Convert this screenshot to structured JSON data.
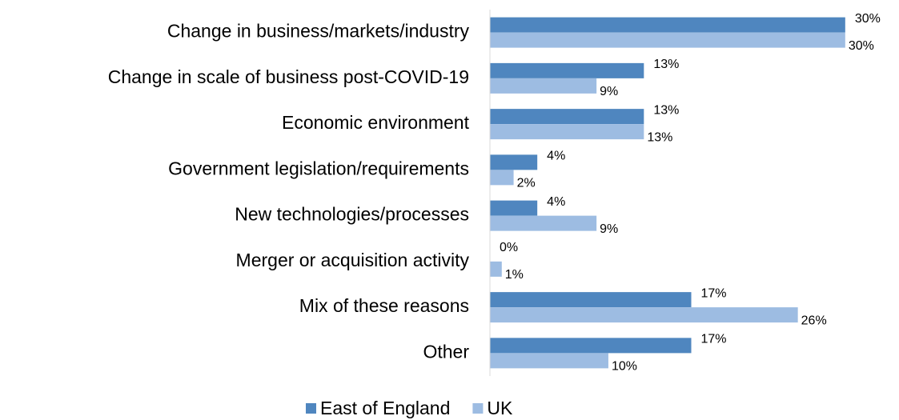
{
  "chart_data": {
    "type": "bar",
    "orientation": "horizontal",
    "categories": [
      "Change in business/markets/industry",
      "Change in scale of business post-COVID-19",
      "Economic environment",
      "Government legislation/requirements",
      "New technologies/processes",
      "Merger or acquisition activity",
      "Mix of these reasons",
      "Other"
    ],
    "series": [
      {
        "name": "East of England",
        "color": "#4f86bf",
        "values": [
          30,
          13,
          13,
          4,
          4,
          0,
          17,
          17
        ],
        "value_labels": [
          "30%",
          "13%",
          "13%",
          "4%",
          "4%",
          "0%",
          "17%",
          "17%"
        ]
      },
      {
        "name": "UK",
        "color": "#9dbce2",
        "values": [
          30,
          9,
          13,
          2,
          9,
          1,
          26,
          10
        ],
        "value_labels": [
          "30%",
          "9%",
          "13%",
          "2%",
          "9%",
          "1%",
          "26%",
          "10%"
        ]
      }
    ],
    "xlim": [
      0,
      34
    ],
    "legend": "bottom"
  }
}
